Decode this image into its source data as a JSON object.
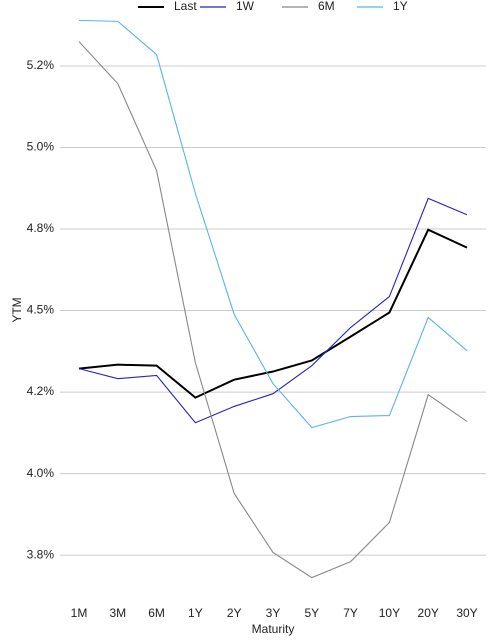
{
  "chart_data": {
    "type": "line",
    "xlabel": "Maturity",
    "ylabel": "YTM",
    "categories": [
      "1M",
      "3M",
      "6M",
      "1Y",
      "2Y",
      "3Y",
      "5Y",
      "7Y",
      "10Y",
      "20Y",
      "30Y"
    ],
    "series": [
      {
        "name": "Last",
        "color": "#000000",
        "values": [
          4.322,
          4.334,
          4.331,
          4.233,
          4.288,
          4.313,
          4.347,
          4.42,
          4.494,
          4.748,
          4.693
        ]
      },
      {
        "name": "1W",
        "color": "#2222cc",
        "values": [
          4.322,
          4.291,
          4.301,
          4.156,
          4.206,
          4.245,
          4.331,
          4.448,
          4.543,
          4.844,
          4.794
        ]
      },
      {
        "name": "6M",
        "color": "#888888",
        "values": [
          5.325,
          5.196,
          4.929,
          4.34,
          3.939,
          3.758,
          3.681,
          3.73,
          3.85,
          4.242,
          4.16
        ]
      },
      {
        "name": "1Y",
        "color": "#5ab4e6",
        "values": [
          5.39,
          5.387,
          5.285,
          4.859,
          4.488,
          4.276,
          4.141,
          4.175,
          4.178,
          4.479,
          4.377
        ]
      }
    ],
    "ylim": [
      3.6,
      5.42
    ],
    "yticks": [
      {
        "value": 3.75,
        "label": "3.8%"
      },
      {
        "value": 4.0,
        "label": "4.0%"
      },
      {
        "value": 4.25,
        "label": "4.2%"
      },
      {
        "value": 4.5,
        "label": "4.5%"
      },
      {
        "value": 4.75,
        "label": "4.8%"
      },
      {
        "value": 5.0,
        "label": "5.0%"
      },
      {
        "value": 5.25,
        "label": "5.2%"
      }
    ],
    "grid": true,
    "legend": "top"
  }
}
